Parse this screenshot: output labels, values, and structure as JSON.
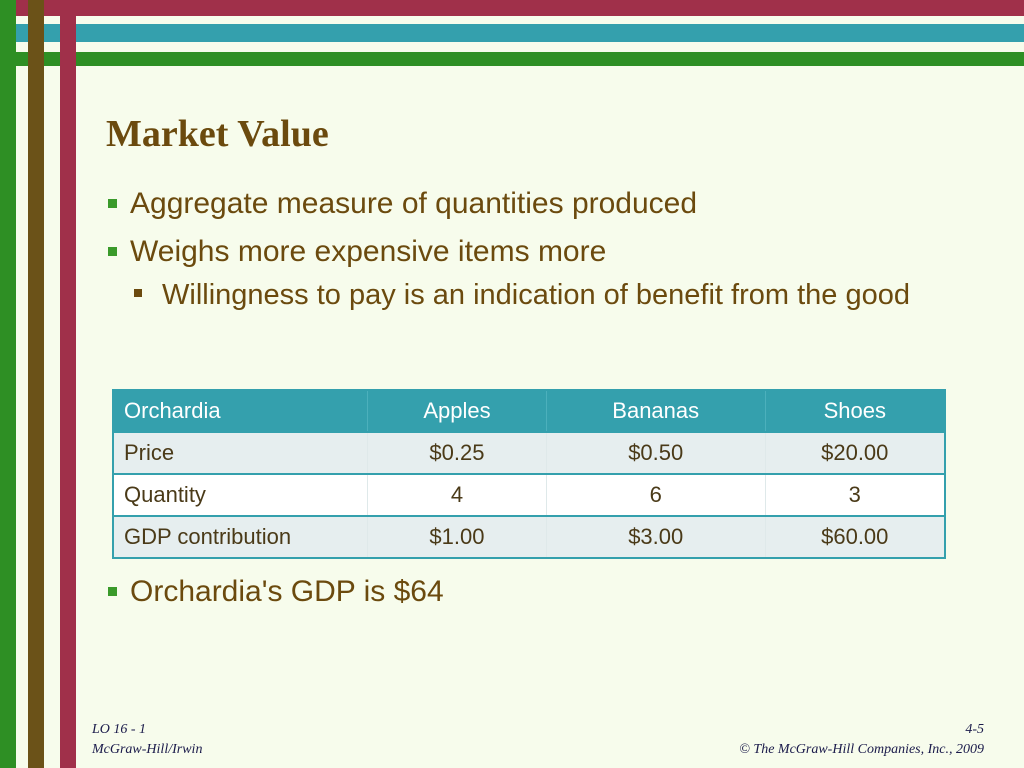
{
  "title": "Market Value",
  "bullets": [
    "Aggregate measure of quantities produced",
    "Weighs more expensive items more"
  ],
  "sub_bullet": "Willingness to pay is an indication of benefit from the good",
  "table": {
    "headers": [
      "Orchardia",
      "Apples",
      "Bananas",
      "Shoes"
    ],
    "rows": [
      [
        "Price",
        "$0.25",
        "$0.50",
        "$20.00"
      ],
      [
        "Quantity",
        "4",
        "6",
        "3"
      ],
      [
        "GDP contribution",
        "$1.00",
        "$3.00",
        "$60.00"
      ]
    ]
  },
  "bottom_bullet": "Orchardia's GDP is $64",
  "footer": {
    "lo": "LO 16 - 1",
    "publisher": "McGraw-Hill/Irwin",
    "page": "4-5",
    "copyright": "© The McGraw-Hill Companies, Inc., 2009"
  },
  "colors": {
    "background": "#f7fcec",
    "stripe_maroon": "#a0304a",
    "stripe_teal": "#34a0ad",
    "stripe_green": "#2e8f24",
    "stripe_brown": "#6b5218",
    "text": "#6b4a0e"
  }
}
